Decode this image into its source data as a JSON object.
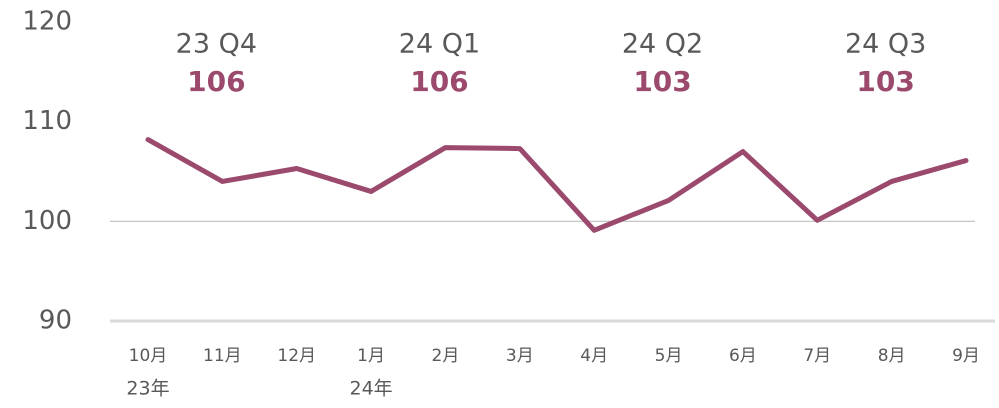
{
  "chart_data": {
    "type": "line",
    "categories": [
      "10月",
      "11月",
      "12月",
      "1月",
      "2月",
      "3月",
      "4月",
      "5月",
      "6月",
      "7月",
      "8月",
      "9月"
    ],
    "year_labels": [
      "23年",
      null,
      null,
      "24年",
      null,
      null,
      null,
      null,
      null,
      null,
      null,
      null
    ],
    "series": [
      {
        "color": "#9b4a6e",
        "values": [
          108.2,
          104,
          105.3,
          103,
          107.4,
          107.3,
          99.1,
          102.1,
          107,
          100.1,
          104,
          106.1
        ]
      }
    ],
    "ylim": [
      90,
      120
    ],
    "yticks": [
      90,
      100,
      110,
      120
    ],
    "grid_at": [
      100
    ],
    "annotations": [
      {
        "label": "23 Q4",
        "value": 106
      },
      {
        "label": "24 Q1",
        "value": 106
      },
      {
        "label": "24 Q2",
        "value": 103
      },
      {
        "label": "24 Q3",
        "value": 103
      }
    ]
  }
}
